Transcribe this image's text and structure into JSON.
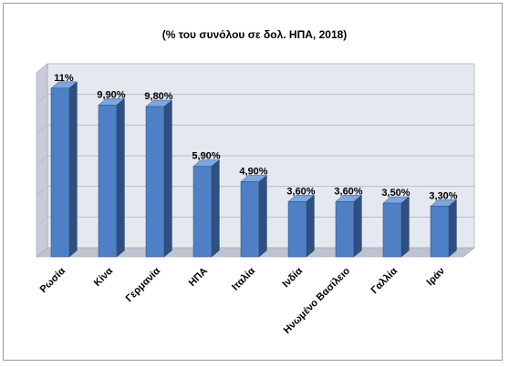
{
  "chart_data": {
    "type": "bar",
    "title": "(% του συνόλου σε δολ. ΗΠΑ, 2018)",
    "categories": [
      "Ρωσία",
      "Κίνα",
      "Γερμανία",
      "ΗΠΑ",
      "Ιταλία",
      "Ινδία",
      "Ηνωμένο Βασίλειο",
      "Γαλλία",
      "Ιράν"
    ],
    "values": [
      11,
      9.9,
      9.8,
      5.9,
      4.9,
      3.6,
      3.6,
      3.5,
      3.3
    ],
    "data_labels": [
      "11%",
      "9,90%",
      "9,80%",
      "5,90%",
      "4,90%",
      "3,60%",
      "3,60%",
      "3,50%",
      "3,30%"
    ],
    "ylim": [
      0,
      12
    ],
    "grid": true,
    "style": "3d-bar",
    "colors": {
      "bar_front": "#4F7FC4",
      "bar_side": "#2E4F80",
      "bar_top": "#7FA6DC",
      "wall": "#E6E8F0",
      "grid": "#B8BCCB"
    }
  }
}
